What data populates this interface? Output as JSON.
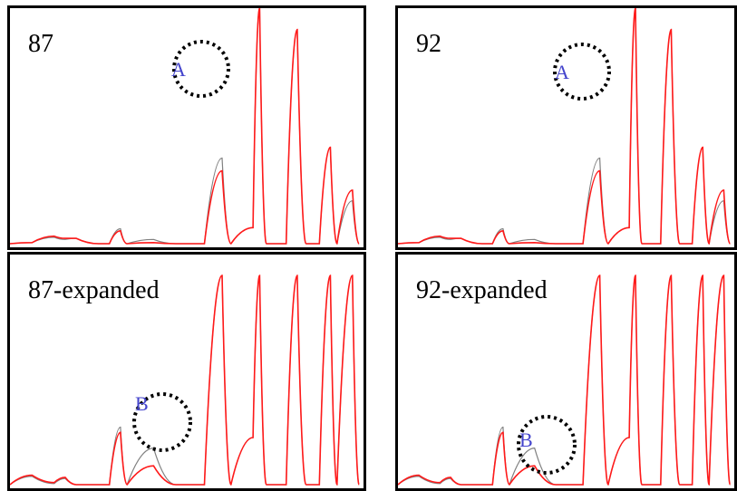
{
  "colors": {
    "reference_trace": "#808080",
    "sample_trace": "#ff1a1a",
    "marker_letter": "#4444cc",
    "marker_circle": "#000000"
  },
  "chart_data": [
    {
      "type": "line",
      "title": "87",
      "series": [
        {
          "values": [
            [
              0,
              0
            ],
            [
              10,
              1
            ],
            [
              20,
              6
            ],
            [
              25,
              4
            ],
            [
              30,
              5
            ],
            [
              40,
              0
            ],
            [
              45,
              0
            ],
            [
              50,
              14
            ],
            [
              53,
              0
            ],
            [
              65,
              4
            ],
            [
              75,
              0
            ],
            [
              88,
              0
            ],
            [
              96,
              80
            ],
            [
              100,
              0
            ],
            [
              110,
              15
            ],
            [
              113,
              220
            ],
            [
              116,
              0
            ],
            [
              120,
              0
            ],
            [
              125,
              0
            ],
            [
              130,
              200
            ],
            [
              134,
              0
            ],
            [
              140,
              0
            ],
            [
              145,
              90
            ],
            [
              148,
              0
            ],
            [
              155,
              40
            ],
            [
              158,
              0
            ]
          ]
        },
        {
          "values": [
            [
              0,
              0
            ],
            [
              10,
              1
            ],
            [
              20,
              7
            ],
            [
              25,
              5
            ],
            [
              30,
              5
            ],
            [
              40,
              0
            ],
            [
              45,
              0
            ],
            [
              50,
              12
            ],
            [
              53,
              0
            ],
            [
              65,
              1
            ],
            [
              75,
              0
            ],
            [
              88,
              0
            ],
            [
              96,
              68
            ],
            [
              100,
              0
            ],
            [
              110,
              15
            ],
            [
              113,
              220
            ],
            [
              116,
              0
            ],
            [
              120,
              0
            ],
            [
              125,
              0
            ],
            [
              130,
              200
            ],
            [
              134,
              0
            ],
            [
              140,
              0
            ],
            [
              145,
              90
            ],
            [
              148,
              0
            ],
            [
              155,
              50
            ],
            [
              158,
              0
            ]
          ]
        }
      ],
      "annotations": [
        {
          "label": "A"
        }
      ]
    },
    {
      "type": "line",
      "title": "92",
      "series": [
        {
          "values": [
            [
              0,
              0
            ],
            [
              10,
              1
            ],
            [
              20,
              6
            ],
            [
              25,
              4
            ],
            [
              30,
              5
            ],
            [
              40,
              0
            ],
            [
              45,
              0
            ],
            [
              50,
              14
            ],
            [
              53,
              0
            ],
            [
              65,
              4
            ],
            [
              75,
              0
            ],
            [
              88,
              0
            ],
            [
              96,
              80
            ],
            [
              100,
              0
            ],
            [
              110,
              15
            ],
            [
              113,
              220
            ],
            [
              116,
              0
            ],
            [
              120,
              0
            ],
            [
              125,
              0
            ],
            [
              130,
              200
            ],
            [
              134,
              0
            ],
            [
              140,
              0
            ],
            [
              145,
              90
            ],
            [
              148,
              0
            ],
            [
              155,
              40
            ],
            [
              158,
              0
            ]
          ]
        },
        {
          "values": [
            [
              0,
              0
            ],
            [
              10,
              1
            ],
            [
              20,
              7
            ],
            [
              25,
              5
            ],
            [
              30,
              5
            ],
            [
              40,
              0
            ],
            [
              45,
              0
            ],
            [
              50,
              12
            ],
            [
              53,
              0
            ],
            [
              65,
              1
            ],
            [
              75,
              0
            ],
            [
              88,
              0
            ],
            [
              96,
              68
            ],
            [
              100,
              0
            ],
            [
              110,
              15
            ],
            [
              113,
              220
            ],
            [
              116,
              0
            ],
            [
              120,
              0
            ],
            [
              125,
              0
            ],
            [
              130,
              200
            ],
            [
              134,
              0
            ],
            [
              140,
              0
            ],
            [
              145,
              90
            ],
            [
              148,
              0
            ],
            [
              155,
              50
            ],
            [
              158,
              0
            ]
          ]
        }
      ],
      "annotations": [
        {
          "label": "A"
        }
      ]
    },
    {
      "type": "line",
      "title": "87-expanded",
      "series": [
        {
          "values": [
            [
              0,
              0
            ],
            [
              10,
              8
            ],
            [
              20,
              1
            ],
            [
              25,
              6
            ],
            [
              30,
              0
            ],
            [
              45,
              0
            ],
            [
              50,
              55
            ],
            [
              53,
              0
            ],
            [
              65,
              35
            ],
            [
              75,
              0
            ],
            [
              88,
              0
            ],
            [
              96,
              200
            ],
            [
              100,
              0
            ],
            [
              110,
              45
            ],
            [
              113,
              200
            ],
            [
              116,
              0
            ],
            [
              120,
              0
            ],
            [
              125,
              0
            ],
            [
              130,
              200
            ],
            [
              134,
              0
            ],
            [
              140,
              0
            ],
            [
              145,
              200
            ],
            [
              148,
              0
            ],
            [
              155,
              200
            ],
            [
              158,
              0
            ]
          ]
        },
        {
          "values": [
            [
              0,
              0
            ],
            [
              10,
              9
            ],
            [
              20,
              2
            ],
            [
              25,
              7
            ],
            [
              30,
              0
            ],
            [
              45,
              0
            ],
            [
              50,
              50
            ],
            [
              53,
              0
            ],
            [
              65,
              18
            ],
            [
              75,
              0
            ],
            [
              88,
              0
            ],
            [
              96,
              200
            ],
            [
              100,
              0
            ],
            [
              110,
              45
            ],
            [
              113,
              200
            ],
            [
              116,
              0
            ],
            [
              120,
              0
            ],
            [
              125,
              0
            ],
            [
              130,
              200
            ],
            [
              134,
              0
            ],
            [
              140,
              0
            ],
            [
              145,
              200
            ],
            [
              148,
              0
            ],
            [
              155,
              200
            ],
            [
              158,
              0
            ]
          ]
        }
      ],
      "annotations": [
        {
          "label": "B"
        }
      ]
    },
    {
      "type": "line",
      "title": "92-expanded",
      "series": [
        {
          "values": [
            [
              0,
              0
            ],
            [
              10,
              8
            ],
            [
              20,
              1
            ],
            [
              25,
              6
            ],
            [
              30,
              0
            ],
            [
              45,
              0
            ],
            [
              50,
              55
            ],
            [
              53,
              0
            ],
            [
              65,
              35
            ],
            [
              75,
              0
            ],
            [
              88,
              0
            ],
            [
              96,
              200
            ],
            [
              100,
              0
            ],
            [
              110,
              45
            ],
            [
              113,
              200
            ],
            [
              116,
              0
            ],
            [
              120,
              0
            ],
            [
              125,
              0
            ],
            [
              130,
              200
            ],
            [
              134,
              0
            ],
            [
              140,
              0
            ],
            [
              145,
              200
            ],
            [
              148,
              0
            ],
            [
              155,
              200
            ],
            [
              158,
              0
            ]
          ]
        },
        {
          "values": [
            [
              0,
              0
            ],
            [
              10,
              9
            ],
            [
              20,
              2
            ],
            [
              25,
              7
            ],
            [
              30,
              0
            ],
            [
              45,
              0
            ],
            [
              50,
              50
            ],
            [
              53,
              0
            ],
            [
              65,
              18
            ],
            [
              75,
              0
            ],
            [
              88,
              0
            ],
            [
              96,
              200
            ],
            [
              100,
              0
            ],
            [
              110,
              45
            ],
            [
              113,
              200
            ],
            [
              116,
              0
            ],
            [
              120,
              0
            ],
            [
              125,
              0
            ],
            [
              130,
              200
            ],
            [
              134,
              0
            ],
            [
              140,
              0
            ],
            [
              145,
              200
            ],
            [
              148,
              0
            ],
            [
              155,
              200
            ],
            [
              158,
              0
            ]
          ]
        }
      ],
      "annotations": [
        {
          "label": "B"
        }
      ]
    }
  ]
}
